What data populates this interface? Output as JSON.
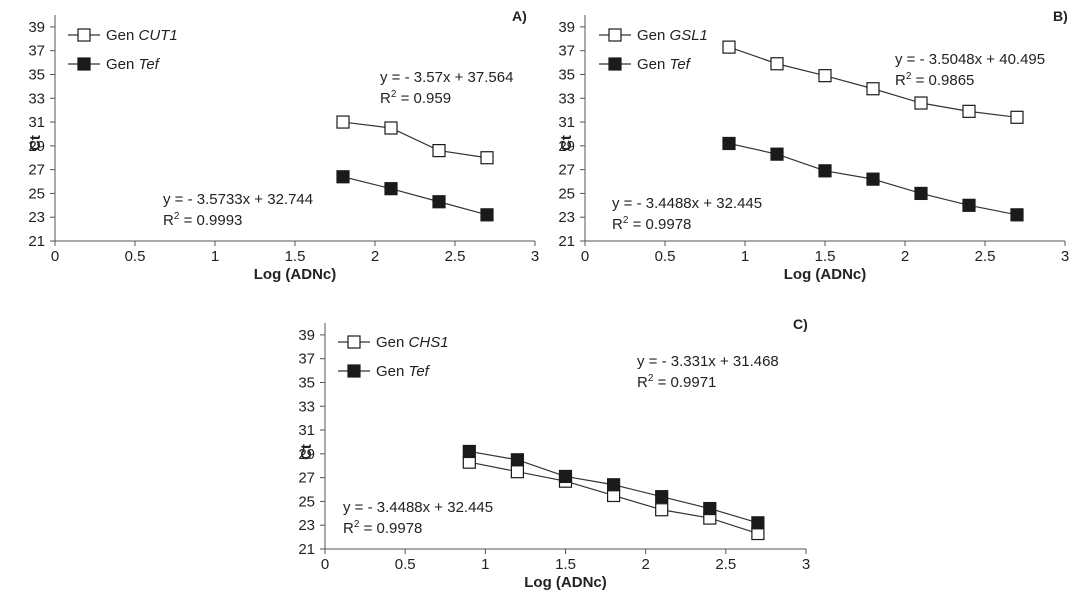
{
  "chart_data": [
    {
      "type": "line",
      "panel_label": "A)",
      "xlabel": "Log (ADNc)",
      "ylabel": "Ct",
      "xlim": [
        0,
        3
      ],
      "ylim": [
        21,
        40
      ],
      "xticks": [
        "0",
        "0.5",
        "1",
        "1.5",
        "2",
        "2.5",
        "3"
      ],
      "xtick_values": [
        0,
        0.5,
        1,
        1.5,
        2,
        2.5,
        3
      ],
      "yticks": [
        "21",
        "23",
        "25",
        "27",
        "29",
        "31",
        "33",
        "35",
        "37",
        "39"
      ],
      "ytick_values": [
        21,
        23,
        25,
        27,
        29,
        31,
        33,
        35,
        37,
        39
      ],
      "series": [
        {
          "name": "Gen CUT1",
          "prefix": "Gen ",
          "gene": "CUT1",
          "marker": "open-square",
          "x": [
            1.8,
            2.1,
            2.4,
            2.7
          ],
          "y": [
            31.0,
            30.5,
            28.6,
            28.0
          ]
        },
        {
          "name": "Gen Tef",
          "prefix": "Gen ",
          "gene": "Tef",
          "marker": "filled-square",
          "x": [
            1.8,
            2.1,
            2.4,
            2.7
          ],
          "y": [
            26.4,
            25.4,
            24.3,
            23.2
          ]
        }
      ],
      "annotations": [
        {
          "eq": "y = - 3.57x + 37.564",
          "r2": "0.959",
          "series": "Gen CUT1"
        },
        {
          "eq": "y = - 3.5733x + 32.744",
          "r2": "0.9993",
          "series": "Gen Tef"
        }
      ]
    },
    {
      "type": "line",
      "panel_label": "B)",
      "xlabel": "Log (ADNc)",
      "ylabel": "Ct",
      "xlim": [
        0,
        3
      ],
      "ylim": [
        21,
        40
      ],
      "xticks": [
        "0",
        "0.5",
        "1",
        "1.5",
        "2",
        "2.5",
        "3"
      ],
      "xtick_values": [
        0,
        0.5,
        1,
        1.5,
        2,
        2.5,
        3
      ],
      "yticks": [
        "21",
        "23",
        "25",
        "27",
        "29",
        "31",
        "33",
        "35",
        "37",
        "39"
      ],
      "ytick_values": [
        21,
        23,
        25,
        27,
        29,
        31,
        33,
        35,
        37,
        39
      ],
      "series": [
        {
          "name": "Gen GSL1",
          "prefix": "Gen ",
          "gene": "GSL1",
          "marker": "open-square",
          "x": [
            0.9,
            1.2,
            1.5,
            1.8,
            2.1,
            2.4,
            2.7
          ],
          "y": [
            37.3,
            35.9,
            34.9,
            33.8,
            32.6,
            31.9,
            31.4
          ]
        },
        {
          "name": "Gen Tef",
          "prefix": "Gen ",
          "gene": "Tef",
          "marker": "filled-square",
          "x": [
            0.9,
            1.2,
            1.5,
            1.8,
            2.1,
            2.4,
            2.7
          ],
          "y": [
            29.2,
            28.3,
            26.9,
            26.2,
            25.0,
            24.0,
            23.2
          ]
        }
      ],
      "annotations": [
        {
          "eq": "y = - 3.5048x + 40.495",
          "r2": "0.9865",
          "series": "Gen GSL1"
        },
        {
          "eq": "y = - 3.4488x + 32.445",
          "r2": "0.9978",
          "series": "Gen Tef"
        }
      ]
    },
    {
      "type": "line",
      "panel_label": "C)",
      "xlabel": "Log (ADNc)",
      "ylabel": "Ct",
      "xlim": [
        0,
        3
      ],
      "ylim": [
        21,
        40
      ],
      "xticks": [
        "0",
        "0.5",
        "1",
        "1.5",
        "2",
        "2.5",
        "3"
      ],
      "xtick_values": [
        0,
        0.5,
        1,
        1.5,
        2,
        2.5,
        3
      ],
      "yticks": [
        "21",
        "23",
        "25",
        "27",
        "29",
        "31",
        "33",
        "35",
        "37",
        "39"
      ],
      "ytick_values": [
        21,
        23,
        25,
        27,
        29,
        31,
        33,
        35,
        37,
        39
      ],
      "series": [
        {
          "name": "Gen CHS1",
          "prefix": "Gen ",
          "gene": "CHS1",
          "marker": "open-square",
          "x": [
            0.9,
            1.2,
            1.5,
            1.8,
            2.1,
            2.4,
            2.7
          ],
          "y": [
            28.3,
            27.5,
            26.7,
            25.5,
            24.3,
            23.6,
            22.3
          ]
        },
        {
          "name": "Gen Tef",
          "prefix": "Gen ",
          "gene": "Tef",
          "marker": "filled-square",
          "x": [
            0.9,
            1.2,
            1.5,
            1.8,
            2.1,
            2.4,
            2.7
          ],
          "y": [
            29.2,
            28.5,
            27.1,
            26.4,
            25.4,
            24.4,
            23.2
          ]
        }
      ],
      "annotations": [
        {
          "eq": "y = - 3.331x + 31.468",
          "r2": "0.9971",
          "series": "Gen Tef"
        },
        {
          "eq": "y = - 3.4488x + 32.445",
          "r2": "0.9978",
          "series": "Gen CHS1"
        }
      ]
    }
  ]
}
